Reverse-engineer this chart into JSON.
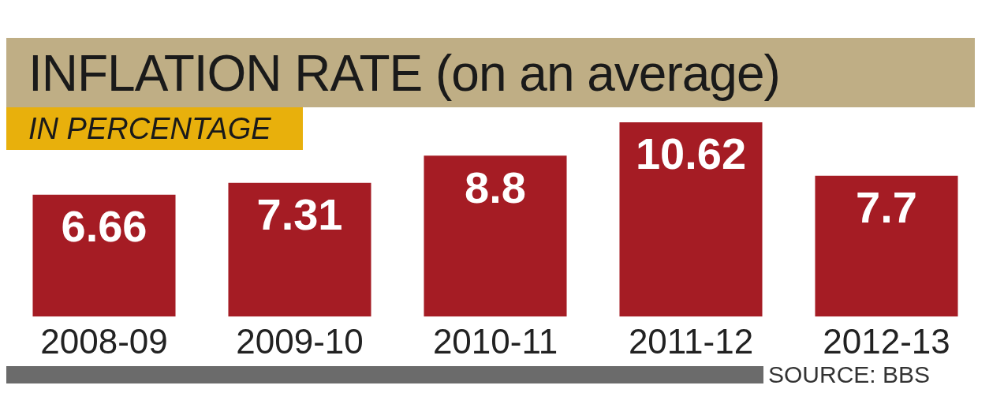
{
  "chart_data": {
    "type": "bar",
    "title": "INFLATION RATE (on an average)",
    "subtitle": "IN PERCENTAGE",
    "categories": [
      "2008-09",
      "2009-10",
      "2010-11",
      "2011-12",
      "2012-13"
    ],
    "values": [
      6.66,
      7.31,
      8.8,
      10.62,
      7.7
    ],
    "color": "#a51c24",
    "data_labels": true,
    "grid": false,
    "legend": false,
    "annotations": [
      "SOURCE: BBS"
    ]
  }
}
